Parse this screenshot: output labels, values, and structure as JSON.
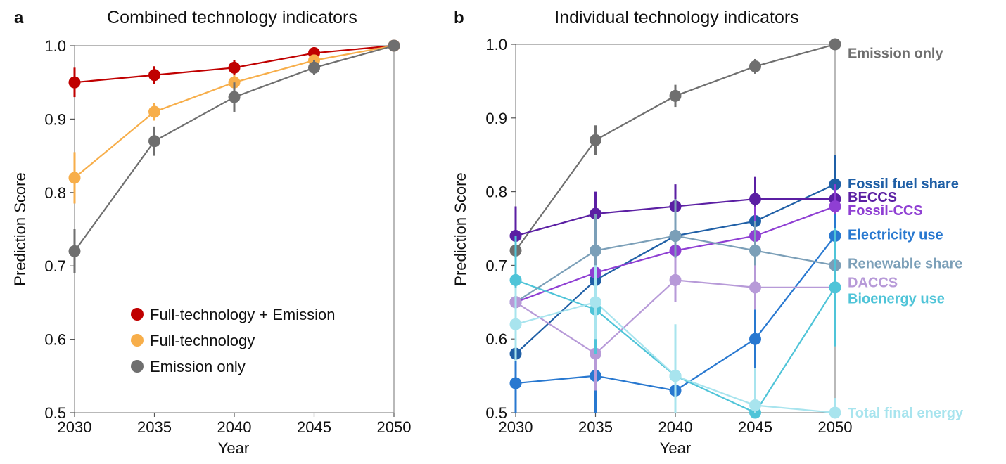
{
  "chart_data": [
    {
      "type": "line",
      "panel": "a",
      "title": "Combined technology indicators",
      "xlabel": "Year",
      "ylabel": "Prediction Score",
      "x": [
        2030,
        2035,
        2040,
        2045,
        2050
      ],
      "xticks": [
        "2030",
        "2035",
        "2040",
        "2045",
        "2050"
      ],
      "ylim": [
        0.5,
        1.0
      ],
      "yticks": [
        "0.5",
        "0.6",
        "0.7",
        "0.8",
        "0.9",
        "1.0"
      ],
      "legend_position": "bottom-right",
      "series": [
        {
          "name": "Full-technology + Emission",
          "color": "#c00000",
          "values": [
            0.95,
            0.96,
            0.97,
            0.99,
            1.0
          ],
          "err": [
            0.02,
            0.012,
            0.01,
            0.008,
            0.004
          ]
        },
        {
          "name": "Full-technology",
          "color": "#f7ae4a",
          "values": [
            0.82,
            0.91,
            0.95,
            0.98,
            1.0
          ],
          "err": [
            0.035,
            0.012,
            0.01,
            0.006,
            0.004
          ]
        },
        {
          "name": "Emission only",
          "color": "#6f6f6f",
          "values": [
            0.72,
            0.87,
            0.93,
            0.97,
            1.0
          ],
          "err": [
            0.03,
            0.02,
            0.02,
            0.01,
            0.004
          ]
        }
      ]
    },
    {
      "type": "line",
      "panel": "b",
      "title": "Individual technology indicators",
      "xlabel": "Year",
      "ylabel": "Prediction Score",
      "x": [
        2030,
        2035,
        2040,
        2045,
        2050
      ],
      "xticks": [
        "2030",
        "2035",
        "2040",
        "2045",
        "2050"
      ],
      "ylim": [
        0.5,
        1.0
      ],
      "yticks": [
        "0.5",
        "0.6",
        "0.7",
        "0.8",
        "0.9",
        "1.0"
      ],
      "legend_position": "right",
      "series": [
        {
          "name": "Emission only",
          "color": "#6f6f6f",
          "values": [
            0.72,
            0.87,
            0.93,
            0.97,
            1.0
          ],
          "err": [
            0.03,
            0.02,
            0.015,
            0.01,
            0.004
          ],
          "label_y": 0.988
        },
        {
          "name": "Fossil fuel share",
          "color": "#1f5fa6",
          "values": [
            0.58,
            0.68,
            0.74,
            0.76,
            0.81
          ],
          "err": [
            0.08,
            0.07,
            0.06,
            0.05,
            0.04
          ],
          "label_y": 0.811
        },
        {
          "name": "BECCS",
          "color": "#5b1fa3",
          "values": [
            0.74,
            0.77,
            0.78,
            0.79,
            0.79
          ],
          "err": [
            0.04,
            0.03,
            0.03,
            0.03,
            0.02
          ],
          "label_y": 0.793
        },
        {
          "name": "Fossil-CCS",
          "color": "#8f3fd3",
          "values": [
            0.65,
            0.69,
            0.72,
            0.74,
            0.78
          ],
          "err": [
            0.05,
            0.05,
            0.04,
            0.04,
            0.03
          ],
          "label_y": 0.775
        },
        {
          "name": "Electricity use",
          "color": "#2878d0",
          "values": [
            0.54,
            0.55,
            0.53,
            0.6,
            0.74
          ],
          "err": [
            0.06,
            0.06,
            0.05,
            0.04,
            0.03
          ],
          "label_y": 0.742
        },
        {
          "name": "Renewable share",
          "color": "#7b9fb8",
          "values": [
            0.65,
            0.72,
            0.74,
            0.72,
            0.7
          ],
          "err": [
            0.06,
            0.05,
            0.05,
            0.04,
            0.03
          ],
          "label_y": 0.703
        },
        {
          "name": "DACCS",
          "color": "#b79ad8",
          "values": [
            0.65,
            0.58,
            0.68,
            0.67,
            0.67
          ],
          "err": [
            0.06,
            0.05,
            0.03,
            0.03,
            0.02
          ],
          "label_y": 0.677
        },
        {
          "name": "Bioenergy use",
          "color": "#4fc4d8",
          "values": [
            0.68,
            0.64,
            0.55,
            0.5,
            0.67
          ],
          "err": [
            0.06,
            0.06,
            0.05,
            0.05,
            0.08
          ],
          "label_y": 0.655
        },
        {
          "name": "Total final energy",
          "color": "#a8e4ee",
          "values": [
            0.62,
            0.65,
            0.55,
            0.51,
            0.5
          ],
          "err": [
            0.05,
            0.05,
            0.07,
            0.05,
            0.02
          ],
          "label_y": 0.5
        }
      ]
    }
  ]
}
